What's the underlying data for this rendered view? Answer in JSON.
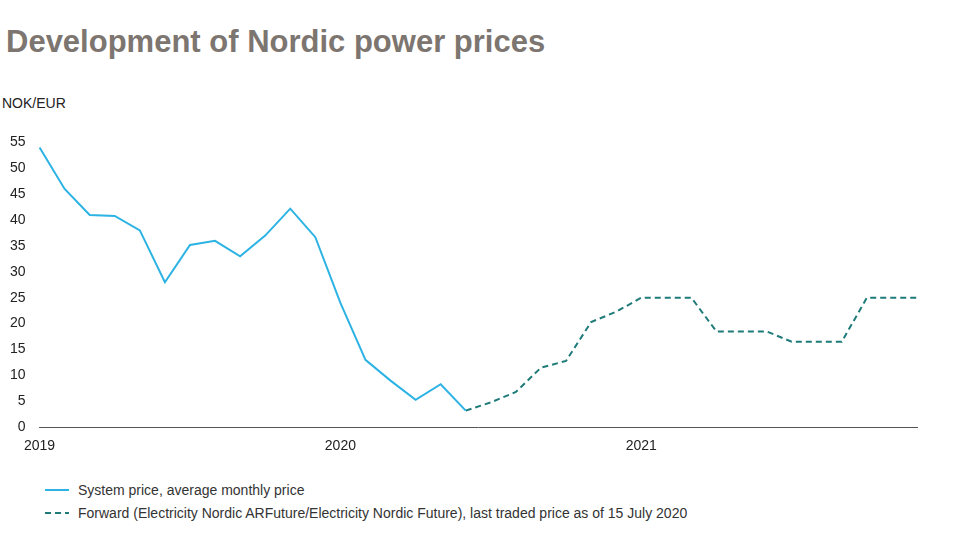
{
  "chart_data": {
    "type": "line",
    "title": "Development of Nordic power prices",
    "y_label": "NOK/EUR",
    "categories": [
      "2019",
      null,
      null,
      null,
      null,
      null,
      null,
      null,
      null,
      null,
      null,
      null,
      "2020",
      null,
      null,
      null,
      null,
      null,
      null,
      null,
      null,
      null,
      null,
      null,
      "2021",
      null,
      null,
      null,
      null,
      null,
      null,
      null,
      null,
      null,
      null,
      null
    ],
    "series": [
      {
        "name": "System price, average monthly price",
        "color": "#2cb3e4",
        "line_style": "solid",
        "values": [
          54,
          46,
          41,
          40.8,
          38,
          28,
          35.2,
          36,
          33,
          37,
          42.2,
          36.7,
          24,
          13,
          9,
          5.3,
          8.3,
          3.2,
          null,
          null,
          null,
          null,
          null,
          null,
          null,
          null,
          null,
          null,
          null,
          null,
          null,
          null,
          null,
          null,
          null,
          null
        ]
      },
      {
        "name": "Forward (Electricity Nordic ARFuture/Electricity Nordic Future), last traded price as of 15 July 2020",
        "color": "#1e7b79",
        "line_style": "dashed",
        "values": [
          null,
          null,
          null,
          null,
          null,
          null,
          null,
          null,
          null,
          null,
          null,
          null,
          null,
          null,
          null,
          null,
          null,
          3.2,
          4.8,
          6.8,
          11.5,
          12.8,
          20.3,
          22.3,
          25,
          25,
          25,
          18.5,
          18.5,
          18.5,
          16.5,
          16.5,
          16.5,
          25,
          25,
          25
        ]
      }
    ],
    "ylim": [
      0,
      55
    ],
    "yticks": [
      0,
      5,
      10,
      15,
      20,
      25,
      30,
      35,
      40,
      45,
      50,
      55
    ],
    "grid": false
  }
}
